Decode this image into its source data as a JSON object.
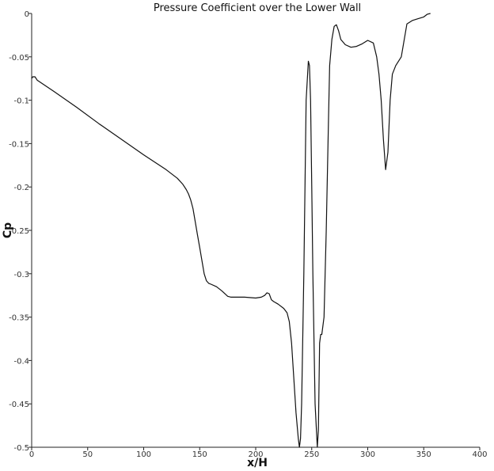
{
  "chart_data": {
    "type": "line",
    "title": "Pressure Coefficient over the Lower Wall",
    "xlabel": "x/H",
    "ylabel": "Cp",
    "xlim": [
      0,
      400
    ],
    "ylim": [
      -0.5,
      0
    ],
    "xticks": [
      0,
      50,
      100,
      150,
      200,
      250,
      300,
      350,
      400
    ],
    "xtick_labels": [
      "0",
      "50",
      "100",
      "150",
      "200",
      "250",
      "300",
      "350",
      "400"
    ],
    "yticks": [
      0,
      -0.05,
      -0.1,
      -0.15,
      -0.2,
      -0.25,
      -0.3,
      -0.35,
      -0.4,
      -0.45,
      -0.5
    ],
    "ytick_labels": [
      "0",
      "-0.05",
      "-0.1",
      "-0.15",
      "-0.2",
      "-0.25",
      "-0.3",
      "-0.35",
      "-0.4",
      "-0.45",
      "-0.5"
    ],
    "grid": false,
    "legend": "none",
    "series": [
      {
        "color": "#111111",
        "x": [
          0,
          1,
          3,
          5,
          20,
          40,
          60,
          80,
          100,
          120,
          130,
          135,
          138,
          140,
          142,
          144,
          146,
          148,
          150,
          152,
          154,
          156,
          158,
          160,
          165,
          170,
          175,
          178,
          180,
          190,
          200,
          205,
          208,
          210,
          212,
          214,
          216,
          220,
          225,
          228,
          230,
          232,
          234,
          236,
          238,
          239,
          240,
          241,
          243,
          245,
          247,
          248,
          249,
          250,
          251,
          253,
          255,
          256,
          257,
          258,
          259,
          261,
          263,
          265,
          266,
          268,
          270,
          272,
          274,
          276,
          280,
          285,
          290,
          295,
          300,
          305,
          308,
          310,
          312,
          314,
          316,
          318,
          320,
          322,
          325,
          330,
          335,
          340,
          345,
          350,
          353,
          356
        ],
        "y": [
          -0.075,
          -0.073,
          -0.073,
          -0.077,
          -0.09,
          -0.108,
          -0.127,
          -0.145,
          -0.163,
          -0.18,
          -0.19,
          -0.197,
          -0.203,
          -0.208,
          -0.215,
          -0.225,
          -0.24,
          -0.255,
          -0.27,
          -0.285,
          -0.3,
          -0.308,
          -0.311,
          -0.312,
          -0.315,
          -0.32,
          -0.326,
          -0.327,
          -0.327,
          -0.327,
          -0.328,
          -0.327,
          -0.325,
          -0.322,
          -0.323,
          -0.33,
          -0.332,
          -0.335,
          -0.34,
          -0.345,
          -0.355,
          -0.38,
          -0.42,
          -0.46,
          -0.49,
          -0.5,
          -0.49,
          -0.45,
          -0.3,
          -0.1,
          -0.055,
          -0.06,
          -0.1,
          -0.2,
          -0.3,
          -0.45,
          -0.5,
          -0.48,
          -0.38,
          -0.37,
          -0.37,
          -0.35,
          -0.25,
          -0.12,
          -0.06,
          -0.03,
          -0.015,
          -0.013,
          -0.02,
          -0.03,
          -0.036,
          -0.039,
          -0.038,
          -0.035,
          -0.031,
          -0.034,
          -0.05,
          -0.07,
          -0.1,
          -0.145,
          -0.18,
          -0.16,
          -0.1,
          -0.07,
          -0.06,
          -0.05,
          -0.012,
          -0.008,
          -0.006,
          -0.004,
          -0.001,
          0
        ]
      }
    ]
  }
}
